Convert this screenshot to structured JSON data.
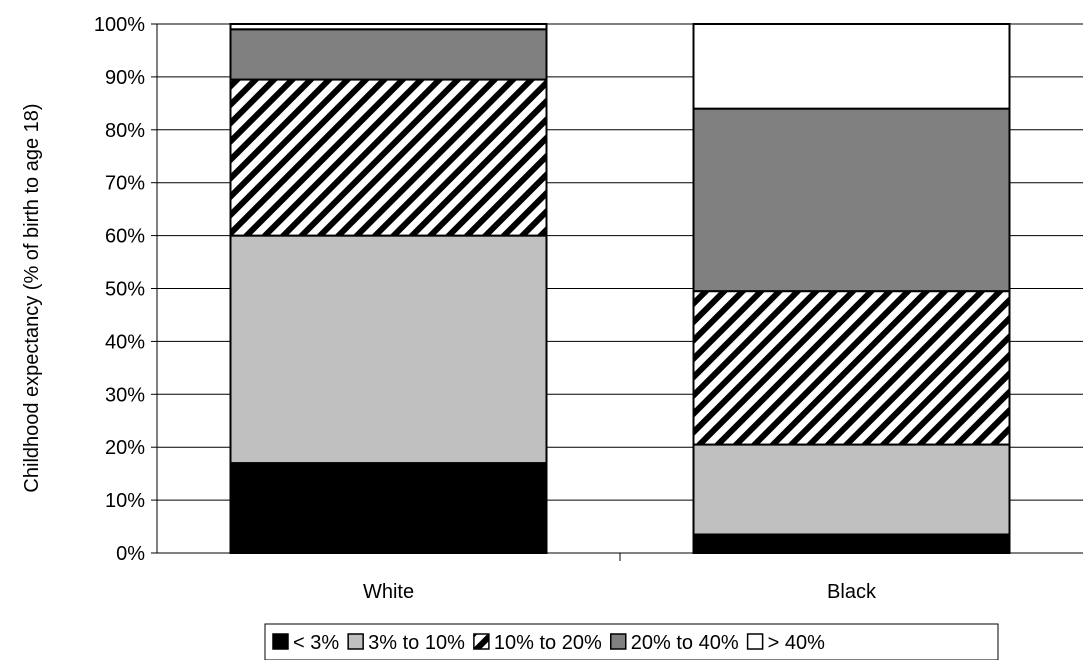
{
  "chart_data": {
    "type": "bar",
    "stacked": true,
    "title": "",
    "xlabel": "",
    "ylabel": "Childhood expectancy (% of birth to age 18)",
    "ylim": [
      0,
      100
    ],
    "yticks": [
      "0%",
      "10%",
      "20%",
      "30%",
      "40%",
      "50%",
      "60%",
      "70%",
      "80%",
      "90%",
      "100%"
    ],
    "grid": true,
    "legend_position": "bottom",
    "categories": [
      "White",
      "Black"
    ],
    "series": [
      {
        "name": "< 3%",
        "values": [
          17,
          3.5
        ],
        "fill": "#000000",
        "pattern": "solid"
      },
      {
        "name": "3% to 10%",
        "values": [
          43,
          17
        ],
        "fill": "#c0c0c0",
        "pattern": "solid"
      },
      {
        "name": "10% to 20%",
        "values": [
          29.5,
          29
        ],
        "fill": "#ffffff",
        "pattern": "diagonal-hatch"
      },
      {
        "name": "20% to 40%",
        "values": [
          9.5,
          34.5
        ],
        "fill": "#808080",
        "pattern": "solid"
      },
      {
        "name": "> 40%",
        "values": [
          1,
          16
        ],
        "fill": "#ffffff",
        "pattern": "solid"
      }
    ]
  }
}
